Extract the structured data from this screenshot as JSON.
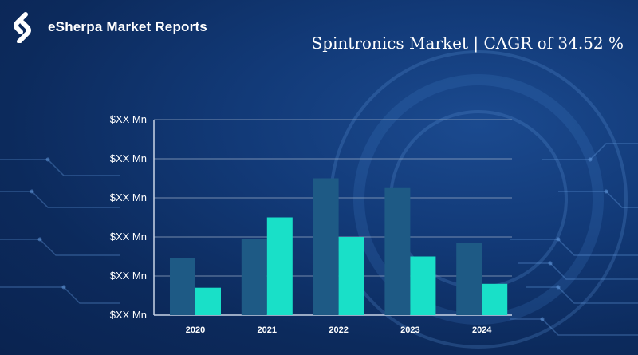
{
  "brand": {
    "name": "eSherpa Market Reports",
    "logo_icon": "esherpa-logo-icon"
  },
  "headline": "Spintronics Market  | CAGR of 34.52 %",
  "colors": {
    "series_dark": "#1e5a85",
    "series_light": "#19e0c8",
    "grid": "#9fb0c8",
    "text": "#ffffff"
  },
  "chart_data": {
    "type": "bar",
    "title": "",
    "xlabel": "",
    "ylabel": "",
    "categories": [
      "2020",
      "2021",
      "2022",
      "2023",
      "2024"
    ],
    "y_tick_labels": [
      "$XX Mn",
      "$XX Mn",
      "$XX Mn",
      "$XX Mn",
      "$XX Mn",
      "$XX Mn"
    ],
    "ylim": [
      0,
      5
    ],
    "grid": true,
    "series": [
      {
        "values": [
          1.45,
          1.95,
          3.5,
          3.25,
          1.85
        ],
        "color": "#1e5a85"
      },
      {
        "values": [
          0.7,
          2.5,
          2.0,
          1.5,
          0.8
        ],
        "color": "#19e0c8"
      }
    ]
  }
}
